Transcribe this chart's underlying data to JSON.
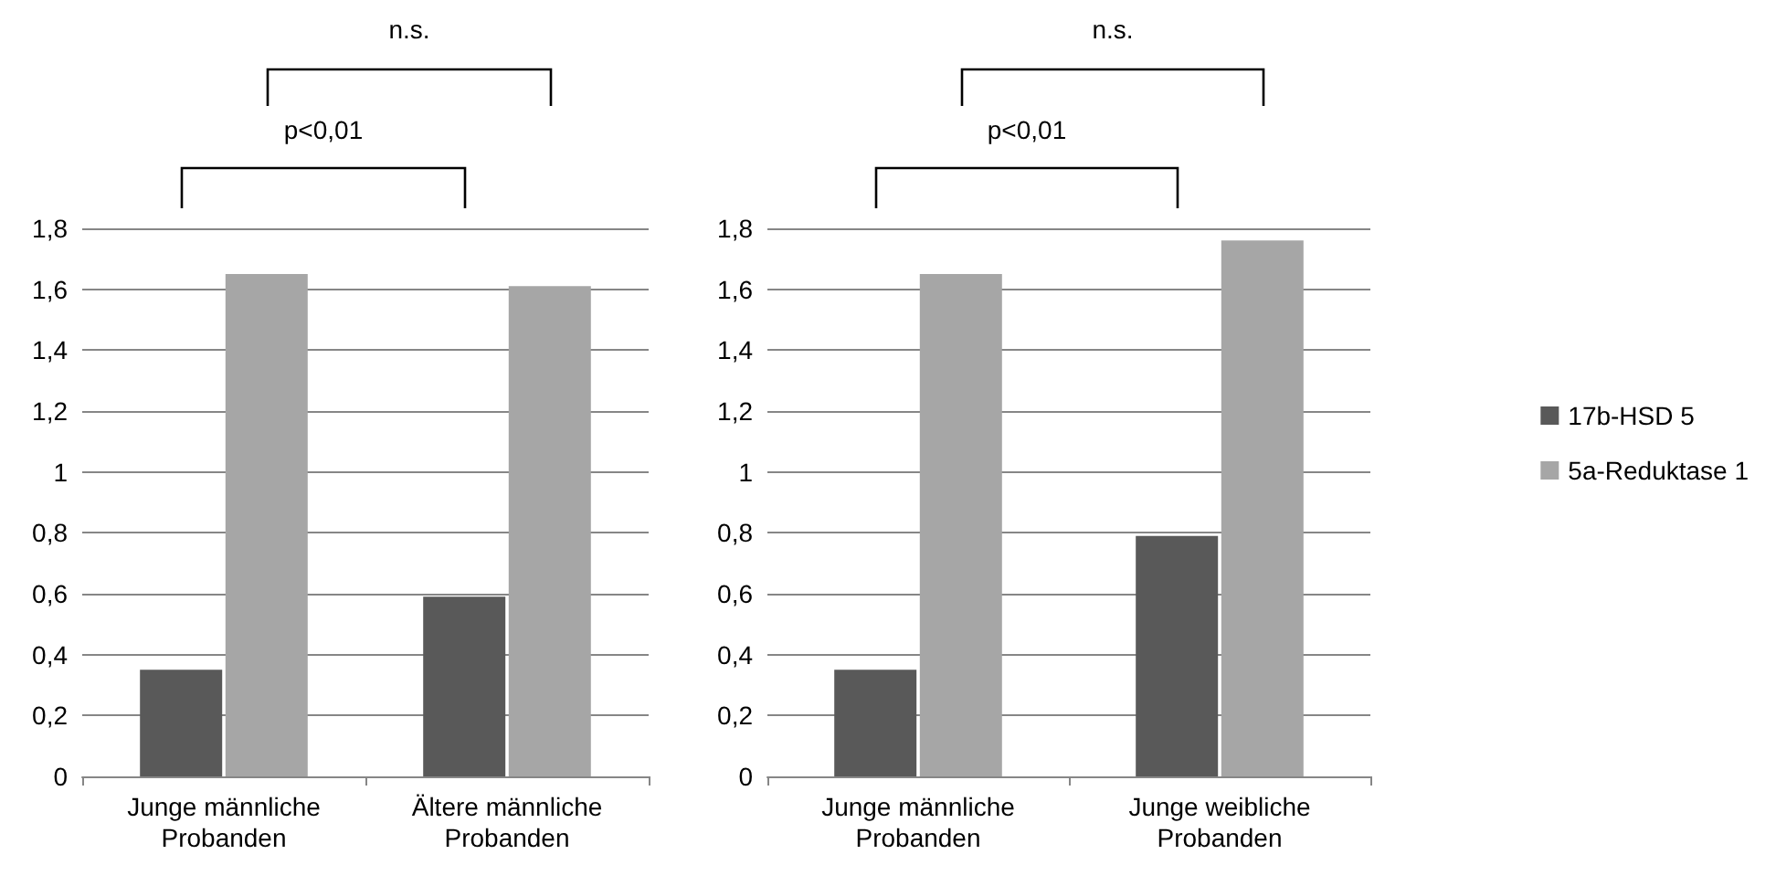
{
  "chart_data": [
    {
      "type": "bar",
      "categories": [
        "Junge männliche\nProbanden",
        "Ältere männliche\nProbanden"
      ],
      "series": [
        {
          "color": "#595959",
          "values": [
            0.35,
            0.59
          ]
        },
        {
          "color": "#a6a6a6",
          "values": [
            1.65,
            1.61
          ]
        }
      ],
      "ylim": [
        0,
        1.8
      ],
      "yticks": [
        {
          "value": 0,
          "label": "0"
        },
        {
          "value": 0.2,
          "label": "0,2"
        },
        {
          "value": 0.4,
          "label": "0,4"
        },
        {
          "value": 0.6,
          "label": "0,6"
        },
        {
          "value": 0.8,
          "label": "0,8"
        },
        {
          "value": 1,
          "label": "1"
        },
        {
          "value": 1.2,
          "label": "1,2"
        },
        {
          "value": 1.4,
          "label": "1,4"
        },
        {
          "value": 1.6,
          "label": "1,6"
        },
        {
          "value": 1.8,
          "label": "1,8"
        }
      ],
      "grid": "y",
      "legend": false,
      "annotations": [
        "p<0,01",
        "n.s."
      ]
    },
    {
      "type": "bar",
      "categories": [
        "Junge männliche\nProbanden",
        "Junge weibliche\nProbanden"
      ],
      "series": [
        {
          "name": "17b-HSD 5",
          "color": "#595959",
          "values": [
            0.35,
            0.79
          ]
        },
        {
          "name": "5a-Reduktase 1",
          "color": "#a6a6a6",
          "values": [
            1.65,
            1.76
          ]
        }
      ],
      "ylim": [
        0,
        1.8
      ],
      "yticks": [
        {
          "value": 0,
          "label": "0"
        },
        {
          "value": 0.2,
          "label": "0,2"
        },
        {
          "value": 0.4,
          "label": "0,4"
        },
        {
          "value": 0.6,
          "label": "0,6"
        },
        {
          "value": 0.8,
          "label": "0,8"
        },
        {
          "value": 1,
          "label": "1"
        },
        {
          "value": 1.2,
          "label": "1,2"
        },
        {
          "value": 1.4,
          "label": "1,4"
        },
        {
          "value": 1.6,
          "label": "1,6"
        },
        {
          "value": 1.8,
          "label": "1,8"
        }
      ],
      "grid": "y",
      "legend": "right",
      "annotations": [
        "p<0,01",
        "n.s."
      ]
    }
  ]
}
